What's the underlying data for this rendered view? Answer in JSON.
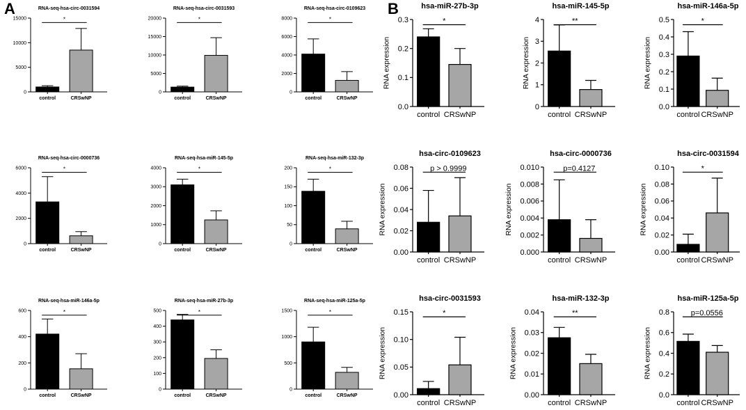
{
  "figure": {
    "panel_a_label": "A",
    "panel_b_label": "B",
    "colors": {
      "control": "#000000",
      "crswnp": "#a6a6a6",
      "axis": "#000000"
    }
  },
  "chart_data": [
    {
      "type": "bar",
      "panel": "A",
      "title": "RNA-seq-hsa-circ-0031594",
      "categories": [
        "control",
        "CRSwNP"
      ],
      "values": [
        1000,
        8500
      ],
      "errors": [
        250,
        4400
      ],
      "ylim": [
        0,
        15000
      ],
      "yticks": [
        "0",
        "5000",
        "10000",
        "15000"
      ],
      "ylabel": "",
      "annotation": "*"
    },
    {
      "type": "bar",
      "panel": "A",
      "title": "RNA-seq-hsa-circ-0031593",
      "categories": [
        "control",
        "CRSwNP"
      ],
      "values": [
        1300,
        9900
      ],
      "errors": [
        250,
        4800
      ],
      "ylim": [
        0,
        20000
      ],
      "yticks": [
        "0",
        "5000",
        "10000",
        "15000",
        "20000"
      ],
      "ylabel": "",
      "annotation": "*"
    },
    {
      "type": "bar",
      "panel": "A",
      "title": "RNA-seq-hsa-circ-0109623",
      "categories": [
        "control",
        "CRSwNP"
      ],
      "values": [
        4100,
        1250
      ],
      "errors": [
        1650,
        950
      ],
      "ylim": [
        0,
        8000
      ],
      "yticks": [
        "0",
        "2000",
        "4000",
        "6000",
        "8000"
      ],
      "ylabel": "",
      "annotation": "*"
    },
    {
      "type": "bar",
      "panel": "B",
      "title": "hsa-miR-27b-3p",
      "categories": [
        "control",
        "CRSwNP"
      ],
      "values": [
        0.24,
        0.145
      ],
      "errors": [
        0.028,
        0.055
      ],
      "ylim": [
        0,
        0.3
      ],
      "yticks": [
        "0.0",
        "0.1",
        "0.2",
        "0.3"
      ],
      "ylabel": "RNA expression",
      "annotation": "*"
    },
    {
      "type": "bar",
      "panel": "B",
      "title": "hsa-miR-145-5p",
      "categories": [
        "control",
        "CRSwNP"
      ],
      "values": [
        2.55,
        0.78
      ],
      "errors": [
        1.2,
        0.42
      ],
      "ylim": [
        0,
        4
      ],
      "yticks": [
        "0",
        "1",
        "2",
        "3",
        "4"
      ],
      "ylabel": "RNA expression",
      "annotation": "**"
    },
    {
      "type": "bar",
      "panel": "B",
      "title": "hsa-miR-146a-5p",
      "categories": [
        "control",
        "CRSwNP"
      ],
      "values": [
        0.29,
        0.093
      ],
      "errors": [
        0.14,
        0.07
      ],
      "ylim": [
        0,
        0.5
      ],
      "yticks": [
        "0.0",
        "0.1",
        "0.2",
        "0.3",
        "0.4",
        "0.5"
      ],
      "ylabel": "RNA expression",
      "annotation": "*"
    },
    {
      "type": "bar",
      "panel": "A",
      "title": "RNA-seq-hsa-circ-0000736",
      "categories": [
        "control",
        "CRSwNP"
      ],
      "values": [
        3300,
        620
      ],
      "errors": [
        2000,
        330
      ],
      "ylim": [
        0,
        6000
      ],
      "yticks": [
        "0",
        "2000",
        "4000",
        "6000"
      ],
      "ylabel": "",
      "annotation": "*"
    },
    {
      "type": "bar",
      "panel": "A",
      "title": "RNA-seq-hsa-miR-145-5p",
      "categories": [
        "control",
        "CRSwNP"
      ],
      "values": [
        3100,
        1250
      ],
      "errors": [
        300,
        480
      ],
      "ylim": [
        0,
        4000
      ],
      "yticks": [
        "0",
        "1000",
        "2000",
        "3000",
        "4000"
      ],
      "ylabel": "",
      "annotation": "*"
    },
    {
      "type": "bar",
      "panel": "A",
      "title": "RNA-seq-hsa-miR-132-3p",
      "categories": [
        "control",
        "CRSwNP"
      ],
      "values": [
        138,
        39
      ],
      "errors": [
        32,
        20
      ],
      "ylim": [
        0,
        200
      ],
      "yticks": [
        "0",
        "50",
        "100",
        "150",
        "200"
      ],
      "ylabel": "",
      "annotation": "*"
    },
    {
      "type": "bar",
      "panel": "B",
      "title": "hsa-circ-0109623",
      "categories": [
        "control",
        "CRSwNP"
      ],
      "values": [
        0.028,
        0.034
      ],
      "errors": [
        0.03,
        0.036
      ],
      "ylim": [
        0,
        0.08
      ],
      "yticks": [
        "0.00",
        "0.02",
        "0.04",
        "0.06",
        "0.08"
      ],
      "ylabel": "RNA expression",
      "annotation": "p > 0.9999"
    },
    {
      "type": "bar",
      "panel": "B",
      "title": "hsa-circ-0000736",
      "categories": [
        "control",
        "CRSwNP"
      ],
      "values": [
        0.0038,
        0.0016
      ],
      "errors": [
        0.0047,
        0.0022
      ],
      "ylim": [
        0,
        0.01
      ],
      "yticks": [
        "0.000",
        "0.002",
        "0.004",
        "0.006",
        "0.008",
        "0.010"
      ],
      "ylabel": "RNA expression",
      "annotation": "p=0.4127"
    },
    {
      "type": "bar",
      "panel": "B",
      "title": "hsa-circ-0031594",
      "categories": [
        "control",
        "CRSwNP"
      ],
      "values": [
        0.009,
        0.046
      ],
      "errors": [
        0.012,
        0.041
      ],
      "ylim": [
        0,
        0.1
      ],
      "yticks": [
        "0.00",
        "0.02",
        "0.04",
        "0.06",
        "0.08",
        "0.10"
      ],
      "ylabel": "RNA expression",
      "annotation": "*"
    },
    {
      "type": "bar",
      "panel": "A",
      "title": "RNA-seq-hsa-miR-146a-5p",
      "categories": [
        "control",
        "CRSwNP"
      ],
      "values": [
        420,
        155
      ],
      "errors": [
        115,
        115
      ],
      "ylim": [
        0,
        600
      ],
      "yticks": [
        "0",
        "200",
        "400",
        "600"
      ],
      "ylabel": "",
      "annotation": "*"
    },
    {
      "type": "bar",
      "panel": "A",
      "title": "RNA-seq-hsa-miR-27b-3p",
      "categories": [
        "control",
        "CRSwNP"
      ],
      "values": [
        440,
        195
      ],
      "errors": [
        35,
        55
      ],
      "ylim": [
        0,
        500
      ],
      "yticks": [
        "0",
        "100",
        "200",
        "300",
        "400",
        "500"
      ],
      "ylabel": "",
      "annotation": "*"
    },
    {
      "type": "bar",
      "panel": "A",
      "title": "RNA-seq-hsa-miR-125a-5p",
      "categories": [
        "control",
        "CRSwNP"
      ],
      "values": [
        900,
        320
      ],
      "errors": [
        280,
        95
      ],
      "ylim": [
        0,
        1500
      ],
      "yticks": [
        "0",
        "500",
        "1000",
        "1500"
      ],
      "ylabel": "",
      "annotation": "*"
    },
    {
      "type": "bar",
      "panel": "B",
      "title": "hsa-circ-0031593",
      "categories": [
        "control",
        "CRSwNP"
      ],
      "values": [
        0.011,
        0.054
      ],
      "errors": [
        0.013,
        0.05
      ],
      "ylim": [
        0,
        0.15
      ],
      "yticks": [
        "0.00",
        "0.05",
        "0.10",
        "0.15"
      ],
      "ylabel": "RNA expression",
      "annotation": "*"
    },
    {
      "type": "bar",
      "panel": "B",
      "title": "hsa-miR-132-3p",
      "categories": [
        "control",
        "CRSwNP"
      ],
      "values": [
        0.0275,
        0.015
      ],
      "errors": [
        0.005,
        0.0045
      ],
      "ylim": [
        0,
        0.04
      ],
      "yticks": [
        "0.00",
        "0.01",
        "0.02",
        "0.03",
        "0.04"
      ],
      "ylabel": "RNA expression",
      "annotation": "**"
    },
    {
      "type": "bar",
      "panel": "B",
      "title": "hsa-miR-125a-5p",
      "categories": [
        "control",
        "CRSwNP"
      ],
      "values": [
        0.515,
        0.41
      ],
      "errors": [
        0.07,
        0.065
      ],
      "ylim": [
        0,
        0.8
      ],
      "yticks": [
        "0.0",
        "0.2",
        "0.4",
        "0.6",
        "0.8"
      ],
      "ylabel": "RNA expression",
      "annotation": "p=0.0556"
    }
  ]
}
